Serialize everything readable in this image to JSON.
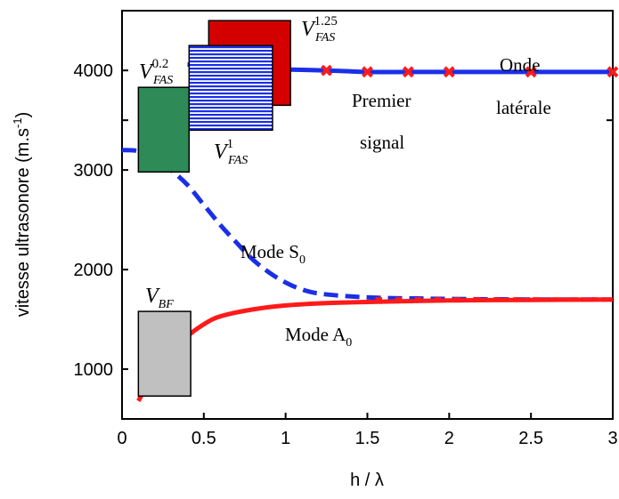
{
  "chart_data": {
    "type": "line",
    "xlabel": "h / λ",
    "ylabel_main": "vitesse ultrasonore (m.s",
    "ylabel_sup": "-1",
    "ylabel_end": ")",
    "xlim": [
      0,
      3
    ],
    "ylim": [
      500,
      4600
    ],
    "xticks": [
      0,
      0.5,
      1,
      1.5,
      2,
      2.5,
      3
    ],
    "xtick_labels": [
      "0",
      "0.5",
      "1",
      "1.5",
      "2",
      "2.5",
      "3"
    ],
    "yticks": [
      1000,
      2000,
      3000,
      4000
    ],
    "ytick_labels": [
      "1000",
      "2000",
      "3000",
      "4000"
    ],
    "grid": false,
    "colors": {
      "premier_signal": "#1a2fe8",
      "mode_S0": "#1a2fe8",
      "mode_A0": "#ff1a1a",
      "markers": "#ff1a1a"
    },
    "series": [
      {
        "label_key": "premier_signal",
        "style": "solid",
        "x": [
          0.4,
          0.5,
          0.75,
          1.0,
          1.25,
          1.5,
          1.75,
          2.0,
          2.5,
          3.0
        ],
        "y": [
          4060,
          4050,
          4030,
          4010,
          4000,
          3985,
          3985,
          3985,
          3985,
          3985
        ]
      },
      {
        "label_key": "mode_S0",
        "style": "dashed",
        "x": [
          0.0,
          0.1,
          0.2,
          0.3,
          0.4,
          0.5,
          0.6,
          0.7,
          0.8,
          0.9,
          1.0,
          1.1,
          1.2,
          1.4,
          1.6,
          1.8,
          2.0,
          2.5,
          3.0
        ],
        "y": [
          3200,
          3190,
          3120,
          3000,
          2850,
          2650,
          2450,
          2270,
          2100,
          1970,
          1870,
          1800,
          1760,
          1730,
          1715,
          1710,
          1705,
          1700,
          1700
        ]
      },
      {
        "label_key": "mode_A0",
        "style": "solid",
        "x": [
          0.1,
          0.15,
          0.2,
          0.3,
          0.4,
          0.5,
          0.6,
          0.8,
          1.0,
          1.2,
          1.5,
          2.0,
          2.5,
          3.0
        ],
        "y": [
          680,
          830,
          950,
          1140,
          1330,
          1450,
          1530,
          1600,
          1640,
          1660,
          1675,
          1690,
          1695,
          1700
        ]
      }
    ],
    "markers": {
      "x": [
        1.25,
        1.5,
        1.75,
        2.0,
        2.5,
        3.0
      ],
      "y": [
        4000,
        3985,
        3985,
        3985,
        3985,
        3985
      ]
    },
    "boxes": [
      {
        "key": "V_BF",
        "x0": 0.1,
        "x1": 0.42,
        "y0": 730,
        "y1": 1580,
        "fill": "#c0c0c0",
        "pattern": "none"
      },
      {
        "key": "V_FAS_0.2",
        "x0": 0.1,
        "x1": 0.41,
        "y0": 2980,
        "y1": 3830,
        "fill": "#2e8b57",
        "pattern": "none"
      },
      {
        "key": "V_FAS_1.25",
        "x0": 0.53,
        "x1": 1.03,
        "y0": 3650,
        "y1": 4500,
        "fill": "#d40000",
        "pattern": "none"
      },
      {
        "key": "V_FAS_1",
        "x0": 0.41,
        "x1": 0.92,
        "y0": 3400,
        "y1": 4250,
        "fill": "#1a2fe8",
        "pattern": "hlines"
      }
    ],
    "annotations": {
      "V_BF": {
        "base": "V",
        "sub": "BF"
      },
      "V_FAS_0.2": {
        "base": "V",
        "sup": "0.2",
        "sub": "FAS"
      },
      "V_FAS_1": {
        "base": "V",
        "sup": "1",
        "sub": "FAS"
      },
      "V_FAS_1.25": {
        "base": "V",
        "sup": "1.25",
        "sub": "FAS"
      },
      "premier_line1": "Premier",
      "premier_line2": "signal",
      "onde_line1": "Onde",
      "onde_line2": "latérale",
      "mode_S0_text": "Mode S",
      "mode_S0_sub": "0",
      "mode_A0_text": "Mode A",
      "mode_A0_sub": "0"
    }
  }
}
